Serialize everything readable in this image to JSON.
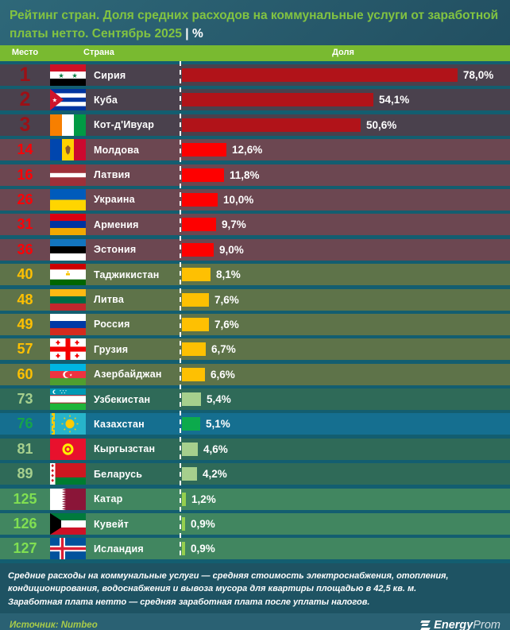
{
  "title": {
    "text": "Рейтинг стран. Доля средних расходов на коммунальные услуги от заработной платы нетто. Сентябрь 2025",
    "separator": "|",
    "unit": "%"
  },
  "table_header": {
    "rank": "Место",
    "country": "Страна",
    "share": "Доля"
  },
  "chart_data": {
    "type": "bar",
    "orientation": "horizontal",
    "unit": "%",
    "title": "Рейтинг стран. Доля средних расходов на коммунальные услуги от заработной платы нетто. Сентябрь 2025, %",
    "value_axis_max": 93,
    "rows": [
      {
        "rank": "1",
        "country": "Сирия",
        "value": 78.0,
        "label": "78,0%",
        "flag": "sy",
        "tier": "top"
      },
      {
        "rank": "2",
        "country": "Куба",
        "value": 54.1,
        "label": "54,1%",
        "flag": "cu",
        "tier": "top"
      },
      {
        "rank": "3",
        "country": "Кот-д'Ивуар",
        "value": 50.6,
        "label": "50,6%",
        "flag": "ci",
        "tier": "top"
      },
      {
        "rank": "14",
        "country": "Молдова",
        "value": 12.6,
        "label": "12,6%",
        "flag": "md",
        "tier": "red"
      },
      {
        "rank": "16",
        "country": "Латвия",
        "value": 11.8,
        "label": "11,8%",
        "flag": "lv",
        "tier": "red"
      },
      {
        "rank": "26",
        "country": "Украина",
        "value": 10.0,
        "label": "10,0%",
        "flag": "ua",
        "tier": "red"
      },
      {
        "rank": "31",
        "country": "Армения",
        "value": 9.7,
        "label": "9,7%",
        "flag": "am",
        "tier": "red"
      },
      {
        "rank": "36",
        "country": "Эстония",
        "value": 9.0,
        "label": "9,0%",
        "flag": "ee",
        "tier": "red"
      },
      {
        "rank": "40",
        "country": "Таджикистан",
        "value": 8.1,
        "label": "8,1%",
        "flag": "tj",
        "tier": "yellow"
      },
      {
        "rank": "48",
        "country": "Литва",
        "value": 7.6,
        "label": "7,6%",
        "flag": "lt",
        "tier": "yellow"
      },
      {
        "rank": "49",
        "country": "Россия",
        "value": 7.6,
        "label": "7,6%",
        "flag": "ru",
        "tier": "yellow"
      },
      {
        "rank": "57",
        "country": "Грузия",
        "value": 6.7,
        "label": "6,7%",
        "flag": "ge",
        "tier": "yellow"
      },
      {
        "rank": "60",
        "country": "Азербайджан",
        "value": 6.6,
        "label": "6,6%",
        "flag": "az",
        "tier": "yellow"
      },
      {
        "rank": "73",
        "country": "Узбекистан",
        "value": 5.4,
        "label": "5,4%",
        "flag": "uz",
        "tier": "pale"
      },
      {
        "rank": "76",
        "country": "Казахстан",
        "value": 5.1,
        "label": "5,1%",
        "flag": "kz",
        "tier": "kz"
      },
      {
        "rank": "81",
        "country": "Кыргызстан",
        "value": 4.6,
        "label": "4,6%",
        "flag": "kg",
        "tier": "pale"
      },
      {
        "rank": "89",
        "country": "Беларусь",
        "value": 4.2,
        "label": "4,2%",
        "flag": "by",
        "tier": "pale"
      },
      {
        "rank": "125",
        "country": "Катар",
        "value": 1.2,
        "label": "1,2%",
        "flag": "qa",
        "tier": "green"
      },
      {
        "rank": "126",
        "country": "Кувейт",
        "value": 0.9,
        "label": "0,9%",
        "flag": "kw",
        "tier": "green"
      },
      {
        "rank": "127",
        "country": "Исландия",
        "value": 0.9,
        "label": "0,9%",
        "flag": "is",
        "tier": "green"
      }
    ]
  },
  "footer": {
    "note1": "Средние расходы на коммунальные услуги — средняя стоимость электроснабжения, отопления, кондиционирования, водоснабжения и вывоза мусора для квартиры площадью в 42,5 кв. м.",
    "note2": "Заработная плата нетто — средняя заработная плата после уплаты налогов.",
    "source": "Источник: Numbeo",
    "logo_bold": "Energy",
    "logo_light": "Prom"
  },
  "colors": {
    "accent_green": "#79ba30",
    "title_green": "#82c341",
    "tier_top": {
      "row": "#4a414d",
      "bar": "#b11319",
      "rank": "#9c1016"
    },
    "tier_red": {
      "row": "#6c4751",
      "bar": "#fe0000",
      "rank": "#fb0207"
    },
    "tier_yellow": {
      "row": "#5e7349",
      "bar": "#fec002",
      "rank": "#fec002"
    },
    "tier_pale": {
      "row": "#2f6a58",
      "bar": "#a6cf8d",
      "rank": "#a6cf8d"
    },
    "tier_kz": {
      "row": "#156f90",
      "bar": "#0caa4c",
      "rank": "#16a44b"
    },
    "tier_green": {
      "row": "#418660",
      "bar": "#95cf4e",
      "rank": "#80df52"
    }
  }
}
